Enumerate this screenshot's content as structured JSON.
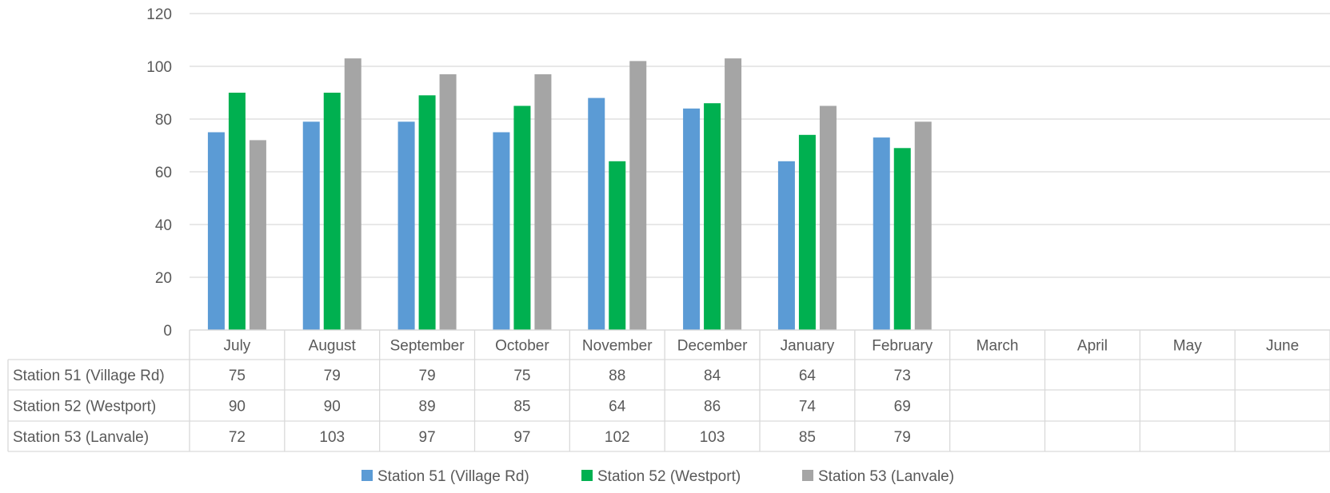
{
  "chart_data": {
    "type": "bar",
    "title": "",
    "xlabel": "",
    "ylabel": "",
    "ylim": [
      0,
      120
    ],
    "yticks": [
      0,
      20,
      40,
      60,
      80,
      100,
      120
    ],
    "grid": true,
    "legend_position": "bottom",
    "data_table": true,
    "categories": [
      "July",
      "August",
      "September",
      "October",
      "November",
      "December",
      "January",
      "February",
      "March",
      "April",
      "May",
      "June"
    ],
    "series": [
      {
        "name": "Station 51 (Village Rd)",
        "color": "#5b9bd5",
        "values": [
          75,
          79,
          79,
          75,
          88,
          84,
          64,
          73,
          null,
          null,
          null,
          null
        ]
      },
      {
        "name": "Station 52 (Westport)",
        "color": "#00b050",
        "values": [
          90,
          90,
          89,
          85,
          64,
          86,
          74,
          69,
          null,
          null,
          null,
          null
        ]
      },
      {
        "name": "Station 53 (Lanvale)",
        "color": "#a5a5a5",
        "values": [
          72,
          103,
          97,
          97,
          102,
          103,
          85,
          79,
          null,
          null,
          null,
          null
        ]
      }
    ]
  }
}
